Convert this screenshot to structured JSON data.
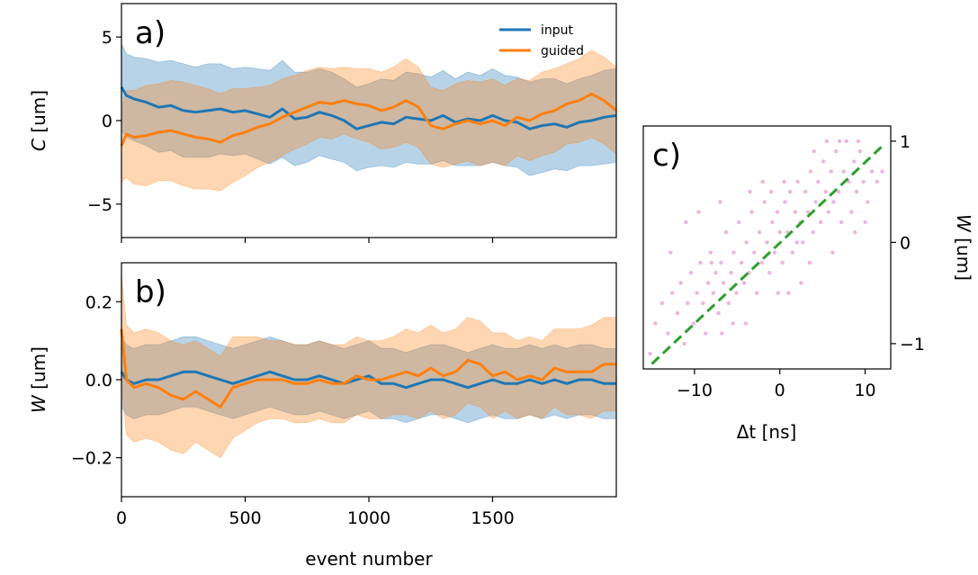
{
  "colors": {
    "input": "#1f77b4",
    "guided": "#ff7f0e",
    "scatter": "#e377c2",
    "fit": "#2ca02c"
  },
  "chart_data": [
    {
      "type": "line",
      "panel_label": "a)",
      "xlabel": "",
      "ylabel_symbol": "C",
      "ylabel_unit": " [um]",
      "xlim": [
        0,
        2000
      ],
      "ylim": [
        -7,
        7
      ],
      "y_ticks": [
        -5,
        0,
        5
      ],
      "y_tick_labels": [
        "−5",
        "0",
        "5"
      ],
      "x_ticks": [
        0,
        500,
        1000,
        1500
      ],
      "legend_position": "top-right",
      "series": [
        {
          "name": "input",
          "color_key": "input",
          "x": [
            0,
            20,
            50,
            100,
            150,
            200,
            250,
            300,
            350,
            400,
            450,
            500,
            550,
            600,
            650,
            700,
            750,
            800,
            850,
            900,
            950,
            1000,
            1050,
            1100,
            1150,
            1200,
            1250,
            1300,
            1350,
            1400,
            1450,
            1500,
            1550,
            1600,
            1650,
            1700,
            1750,
            1800,
            1850,
            1900,
            1950,
            2000
          ],
          "values": [
            2.0,
            1.5,
            1.3,
            1.1,
            0.8,
            0.9,
            0.6,
            0.5,
            0.6,
            0.7,
            0.5,
            0.6,
            0.4,
            0.2,
            0.7,
            0.1,
            0.2,
            0.5,
            0.3,
            0.0,
            -0.5,
            -0.3,
            -0.1,
            -0.2,
            0.2,
            0.1,
            0.0,
            0.3,
            -0.1,
            0.1,
            0.0,
            0.3,
            0.0,
            -0.1,
            -0.5,
            -0.3,
            -0.2,
            -0.4,
            -0.1,
            0.0,
            0.2,
            0.3
          ],
          "band_halfwidth": [
            2.6,
            2.5,
            2.5,
            2.6,
            2.7,
            2.7,
            2.8,
            2.7,
            2.8,
            2.7,
            2.6,
            2.6,
            2.7,
            2.8,
            2.9,
            2.8,
            2.7,
            2.6,
            2.6,
            2.5,
            2.5,
            2.5,
            2.6,
            2.6,
            2.7,
            2.7,
            2.6,
            2.7,
            2.6,
            2.8,
            2.7,
            2.8,
            2.7,
            2.7,
            2.8,
            2.8,
            2.7,
            2.6,
            2.6,
            2.7,
            2.8,
            2.8
          ]
        },
        {
          "name": "guided",
          "color_key": "guided",
          "x": [
            0,
            20,
            50,
            100,
            150,
            200,
            250,
            300,
            350,
            400,
            450,
            500,
            550,
            600,
            650,
            700,
            750,
            800,
            850,
            900,
            950,
            1000,
            1050,
            1100,
            1150,
            1200,
            1250,
            1300,
            1350,
            1400,
            1450,
            1500,
            1550,
            1600,
            1650,
            1700,
            1750,
            1800,
            1850,
            1900,
            1950,
            2000
          ],
          "values": [
            -1.5,
            -0.8,
            -1.0,
            -0.9,
            -0.7,
            -0.6,
            -0.8,
            -1.0,
            -1.1,
            -1.3,
            -0.9,
            -0.7,
            -0.4,
            -0.2,
            0.2,
            0.5,
            0.8,
            1.1,
            1.0,
            1.2,
            1.0,
            0.9,
            0.6,
            0.8,
            1.2,
            0.8,
            -0.3,
            -0.5,
            -0.2,
            0.0,
            -0.2,
            0.0,
            -0.3,
            0.2,
            0.0,
            0.4,
            0.6,
            1.0,
            1.2,
            1.6,
            1.2,
            0.6
          ],
          "band_halfwidth": [
            2.2,
            2.6,
            2.8,
            3.0,
            2.9,
            3.0,
            3.1,
            3.1,
            3.0,
            2.9,
            2.8,
            2.6,
            2.4,
            2.3,
            2.3,
            2.2,
            2.2,
            2.1,
            2.1,
            2.0,
            2.1,
            2.2,
            2.3,
            2.4,
            2.5,
            2.4,
            2.3,
            2.3,
            2.4,
            2.4,
            2.5,
            2.5,
            2.4,
            2.3,
            2.4,
            2.5,
            2.5,
            2.4,
            2.5,
            2.6,
            2.6,
            2.6
          ]
        }
      ]
    },
    {
      "type": "line",
      "panel_label": "b)",
      "xlabel": "event number",
      "ylabel_symbol": "W",
      "ylabel_unit": " [um]",
      "xlim": [
        0,
        2000
      ],
      "ylim": [
        -0.3,
        0.3
      ],
      "y_ticks": [
        -0.2,
        0.0,
        0.2
      ],
      "y_tick_labels": [
        "−0.2",
        "0.0",
        "0.2"
      ],
      "x_ticks": [
        0,
        500,
        1000,
        1500
      ],
      "x_tick_labels": [
        "0",
        "500",
        "1000",
        "1500"
      ],
      "series": [
        {
          "name": "input",
          "color_key": "input",
          "x": [
            0,
            20,
            50,
            100,
            150,
            200,
            250,
            300,
            350,
            400,
            450,
            500,
            550,
            600,
            650,
            700,
            750,
            800,
            850,
            900,
            950,
            1000,
            1050,
            1100,
            1150,
            1200,
            1250,
            1300,
            1350,
            1400,
            1450,
            1500,
            1550,
            1600,
            1650,
            1700,
            1750,
            1800,
            1850,
            1900,
            1950,
            2000
          ],
          "values": [
            0.02,
            0.0,
            -0.01,
            0.0,
            0.0,
            0.01,
            0.02,
            0.02,
            0.01,
            0.0,
            -0.01,
            0.0,
            0.01,
            0.02,
            0.01,
            0.0,
            0.0,
            0.01,
            0.0,
            -0.01,
            0.0,
            0.01,
            -0.01,
            -0.01,
            -0.02,
            -0.01,
            0.0,
            0.0,
            -0.01,
            -0.02,
            -0.01,
            0.0,
            -0.01,
            -0.01,
            0.0,
            -0.01,
            0.0,
            -0.01,
            0.0,
            0.0,
            -0.01,
            -0.01
          ],
          "band_halfwidth": [
            0.09,
            0.09,
            0.09,
            0.09,
            0.09,
            0.09,
            0.09,
            0.09,
            0.09,
            0.09,
            0.09,
            0.09,
            0.09,
            0.09,
            0.09,
            0.09,
            0.09,
            0.09,
            0.09,
            0.09,
            0.09,
            0.09,
            0.09,
            0.09,
            0.09,
            0.09,
            0.09,
            0.09,
            0.09,
            0.09,
            0.09,
            0.09,
            0.09,
            0.09,
            0.09,
            0.09,
            0.09,
            0.09,
            0.09,
            0.09,
            0.09,
            0.09
          ]
        },
        {
          "name": "guided",
          "color_key": "guided",
          "x": [
            0,
            20,
            50,
            100,
            150,
            200,
            250,
            300,
            350,
            400,
            450,
            500,
            550,
            600,
            650,
            700,
            750,
            800,
            850,
            900,
            950,
            1000,
            1050,
            1100,
            1150,
            1200,
            1250,
            1300,
            1350,
            1400,
            1450,
            1500,
            1550,
            1600,
            1650,
            1700,
            1750,
            1800,
            1850,
            1900,
            1950,
            2000
          ],
          "values": [
            0.13,
            0.0,
            -0.02,
            -0.01,
            -0.02,
            -0.04,
            -0.05,
            -0.03,
            -0.05,
            -0.07,
            -0.02,
            -0.01,
            0.0,
            0.0,
            0.0,
            -0.01,
            -0.01,
            0.0,
            -0.01,
            -0.01,
            0.01,
            0.0,
            0.0,
            0.01,
            0.02,
            0.01,
            0.03,
            0.01,
            0.02,
            0.05,
            0.04,
            0.01,
            0.02,
            0.0,
            0.01,
            0.0,
            0.03,
            0.02,
            0.02,
            0.02,
            0.04,
            0.04
          ],
          "band_halfwidth": [
            0.14,
            0.14,
            0.14,
            0.14,
            0.14,
            0.14,
            0.14,
            0.13,
            0.13,
            0.13,
            0.13,
            0.12,
            0.11,
            0.1,
            0.1,
            0.1,
            0.1,
            0.1,
            0.1,
            0.1,
            0.1,
            0.1,
            0.1,
            0.1,
            0.11,
            0.11,
            0.11,
            0.11,
            0.11,
            0.11,
            0.11,
            0.11,
            0.1,
            0.1,
            0.1,
            0.1,
            0.1,
            0.11,
            0.11,
            0.12,
            0.12,
            0.12
          ]
        }
      ]
    },
    {
      "type": "scatter",
      "panel_label": "c)",
      "xlabel_symbol": "Δt",
      "xlabel_unit": " [ns]",
      "ylabel_symbol": "W",
      "ylabel_unit": " [um]",
      "xlim": [
        -16,
        13
      ],
      "ylim": [
        -1.25,
        1.15
      ],
      "x_ticks": [
        -10,
        0,
        10
      ],
      "x_tick_labels": [
        "−10",
        "0",
        "10"
      ],
      "y_ticks": [
        -1,
        0,
        1
      ],
      "y_tick_labels": [
        "−1",
        "0",
        "1"
      ],
      "yaxis_position": "right",
      "fit_line": {
        "x": [
          -15,
          12
        ],
        "y": [
          -1.2,
          0.95
        ]
      },
      "points": [
        [
          -14.6,
          -0.8
        ],
        [
          -13.8,
          -0.6
        ],
        [
          -13.1,
          -0.9
        ],
        [
          -12.6,
          -0.5
        ],
        [
          -12.0,
          -0.7
        ],
        [
          -11.6,
          -0.4
        ],
        [
          -11.2,
          -1.0
        ],
        [
          -10.8,
          -0.6
        ],
        [
          -10.4,
          -0.3
        ],
        [
          -10.1,
          -0.8
        ],
        [
          -9.7,
          -0.5
        ],
        [
          -9.3,
          -0.2
        ],
        [
          -9.0,
          -0.6
        ],
        [
          -8.7,
          -0.9
        ],
        [
          -8.4,
          -0.4
        ],
        [
          -8.1,
          -0.1
        ],
        [
          -7.8,
          -0.5
        ],
        [
          -7.5,
          -0.3
        ],
        [
          -7.2,
          -0.7
        ],
        [
          -6.9,
          -0.2
        ],
        [
          -6.6,
          -0.4
        ],
        [
          -6.3,
          0.1
        ],
        [
          -6.0,
          -0.6
        ],
        [
          -5.7,
          -0.3
        ],
        [
          -5.4,
          -0.1
        ],
        [
          -5.1,
          -0.5
        ],
        [
          -4.8,
          0.2
        ],
        [
          -4.5,
          -0.2
        ],
        [
          -4.2,
          -0.4
        ],
        [
          -3.9,
          0.0
        ],
        [
          -3.6,
          -0.3
        ],
        [
          -3.3,
          0.3
        ],
        [
          -3.0,
          -0.1
        ],
        [
          -2.7,
          -0.5
        ],
        [
          -2.4,
          0.1
        ],
        [
          -2.1,
          -0.2
        ],
        [
          -1.8,
          0.4
        ],
        [
          -1.5,
          0.0
        ],
        [
          -1.2,
          -0.3
        ],
        [
          -0.9,
          0.2
        ],
        [
          -0.6,
          -0.1
        ],
        [
          -0.3,
          0.3
        ],
        [
          0.0,
          0.1
        ],
        [
          0.3,
          -0.2
        ],
        [
          0.6,
          0.4
        ],
        [
          0.9,
          0.1
        ],
        [
          1.2,
          0.5
        ],
        [
          1.5,
          -0.1
        ],
        [
          1.8,
          0.3
        ],
        [
          2.1,
          0.6
        ],
        [
          2.4,
          0.2
        ],
        [
          2.7,
          0.0
        ],
        [
          3.0,
          0.5
        ],
        [
          3.3,
          0.3
        ],
        [
          3.6,
          0.7
        ],
        [
          3.9,
          0.1
        ],
        [
          4.2,
          0.4
        ],
        [
          4.5,
          0.6
        ],
        [
          4.8,
          0.2
        ],
        [
          5.1,
          0.8
        ],
        [
          5.4,
          0.5
        ],
        [
          5.7,
          0.3
        ],
        [
          6.0,
          0.7
        ],
        [
          6.3,
          0.4
        ],
        [
          6.6,
          0.9
        ],
        [
          6.9,
          0.5
        ],
        [
          7.2,
          0.2
        ],
        [
          7.5,
          0.7
        ],
        [
          7.8,
          1.0
        ],
        [
          8.1,
          0.6
        ],
        [
          8.4,
          0.3
        ],
        [
          8.7,
          0.8
        ],
        [
          9.0,
          0.5
        ],
        [
          9.4,
          0.9
        ],
        [
          9.8,
          0.6
        ],
        [
          10.3,
          0.4
        ],
        [
          10.8,
          0.7
        ],
        [
          11.4,
          0.6
        ],
        [
          12.0,
          0.7
        ],
        [
          -15.2,
          -1.1
        ],
        [
          -9.5,
          0.3
        ],
        [
          -7.0,
          0.4
        ],
        [
          -4.0,
          -0.8
        ],
        [
          -2.0,
          0.6
        ],
        [
          1.0,
          -0.5
        ],
        [
          2.5,
          -0.4
        ],
        [
          4.0,
          0.9
        ],
        [
          6.2,
          -0.1
        ],
        [
          7.0,
          1.0
        ],
        [
          -1.0,
          0.5
        ],
        [
          0.5,
          0.6
        ],
        [
          -5.5,
          -0.8
        ],
        [
          3.5,
          -0.2
        ],
        [
          5.5,
          1.0
        ],
        [
          -11.0,
          0.2
        ],
        [
          -3.5,
          0.5
        ],
        [
          8.8,
          0.1
        ],
        [
          -12.8,
          -0.1
        ],
        [
          10.0,
          0.2
        ],
        [
          -6.8,
          -0.9
        ],
        [
          2.0,
          0.0
        ],
        [
          -0.2,
          -0.5
        ],
        [
          -8.0,
          -0.2
        ],
        [
          9.2,
          1.0
        ]
      ]
    }
  ]
}
